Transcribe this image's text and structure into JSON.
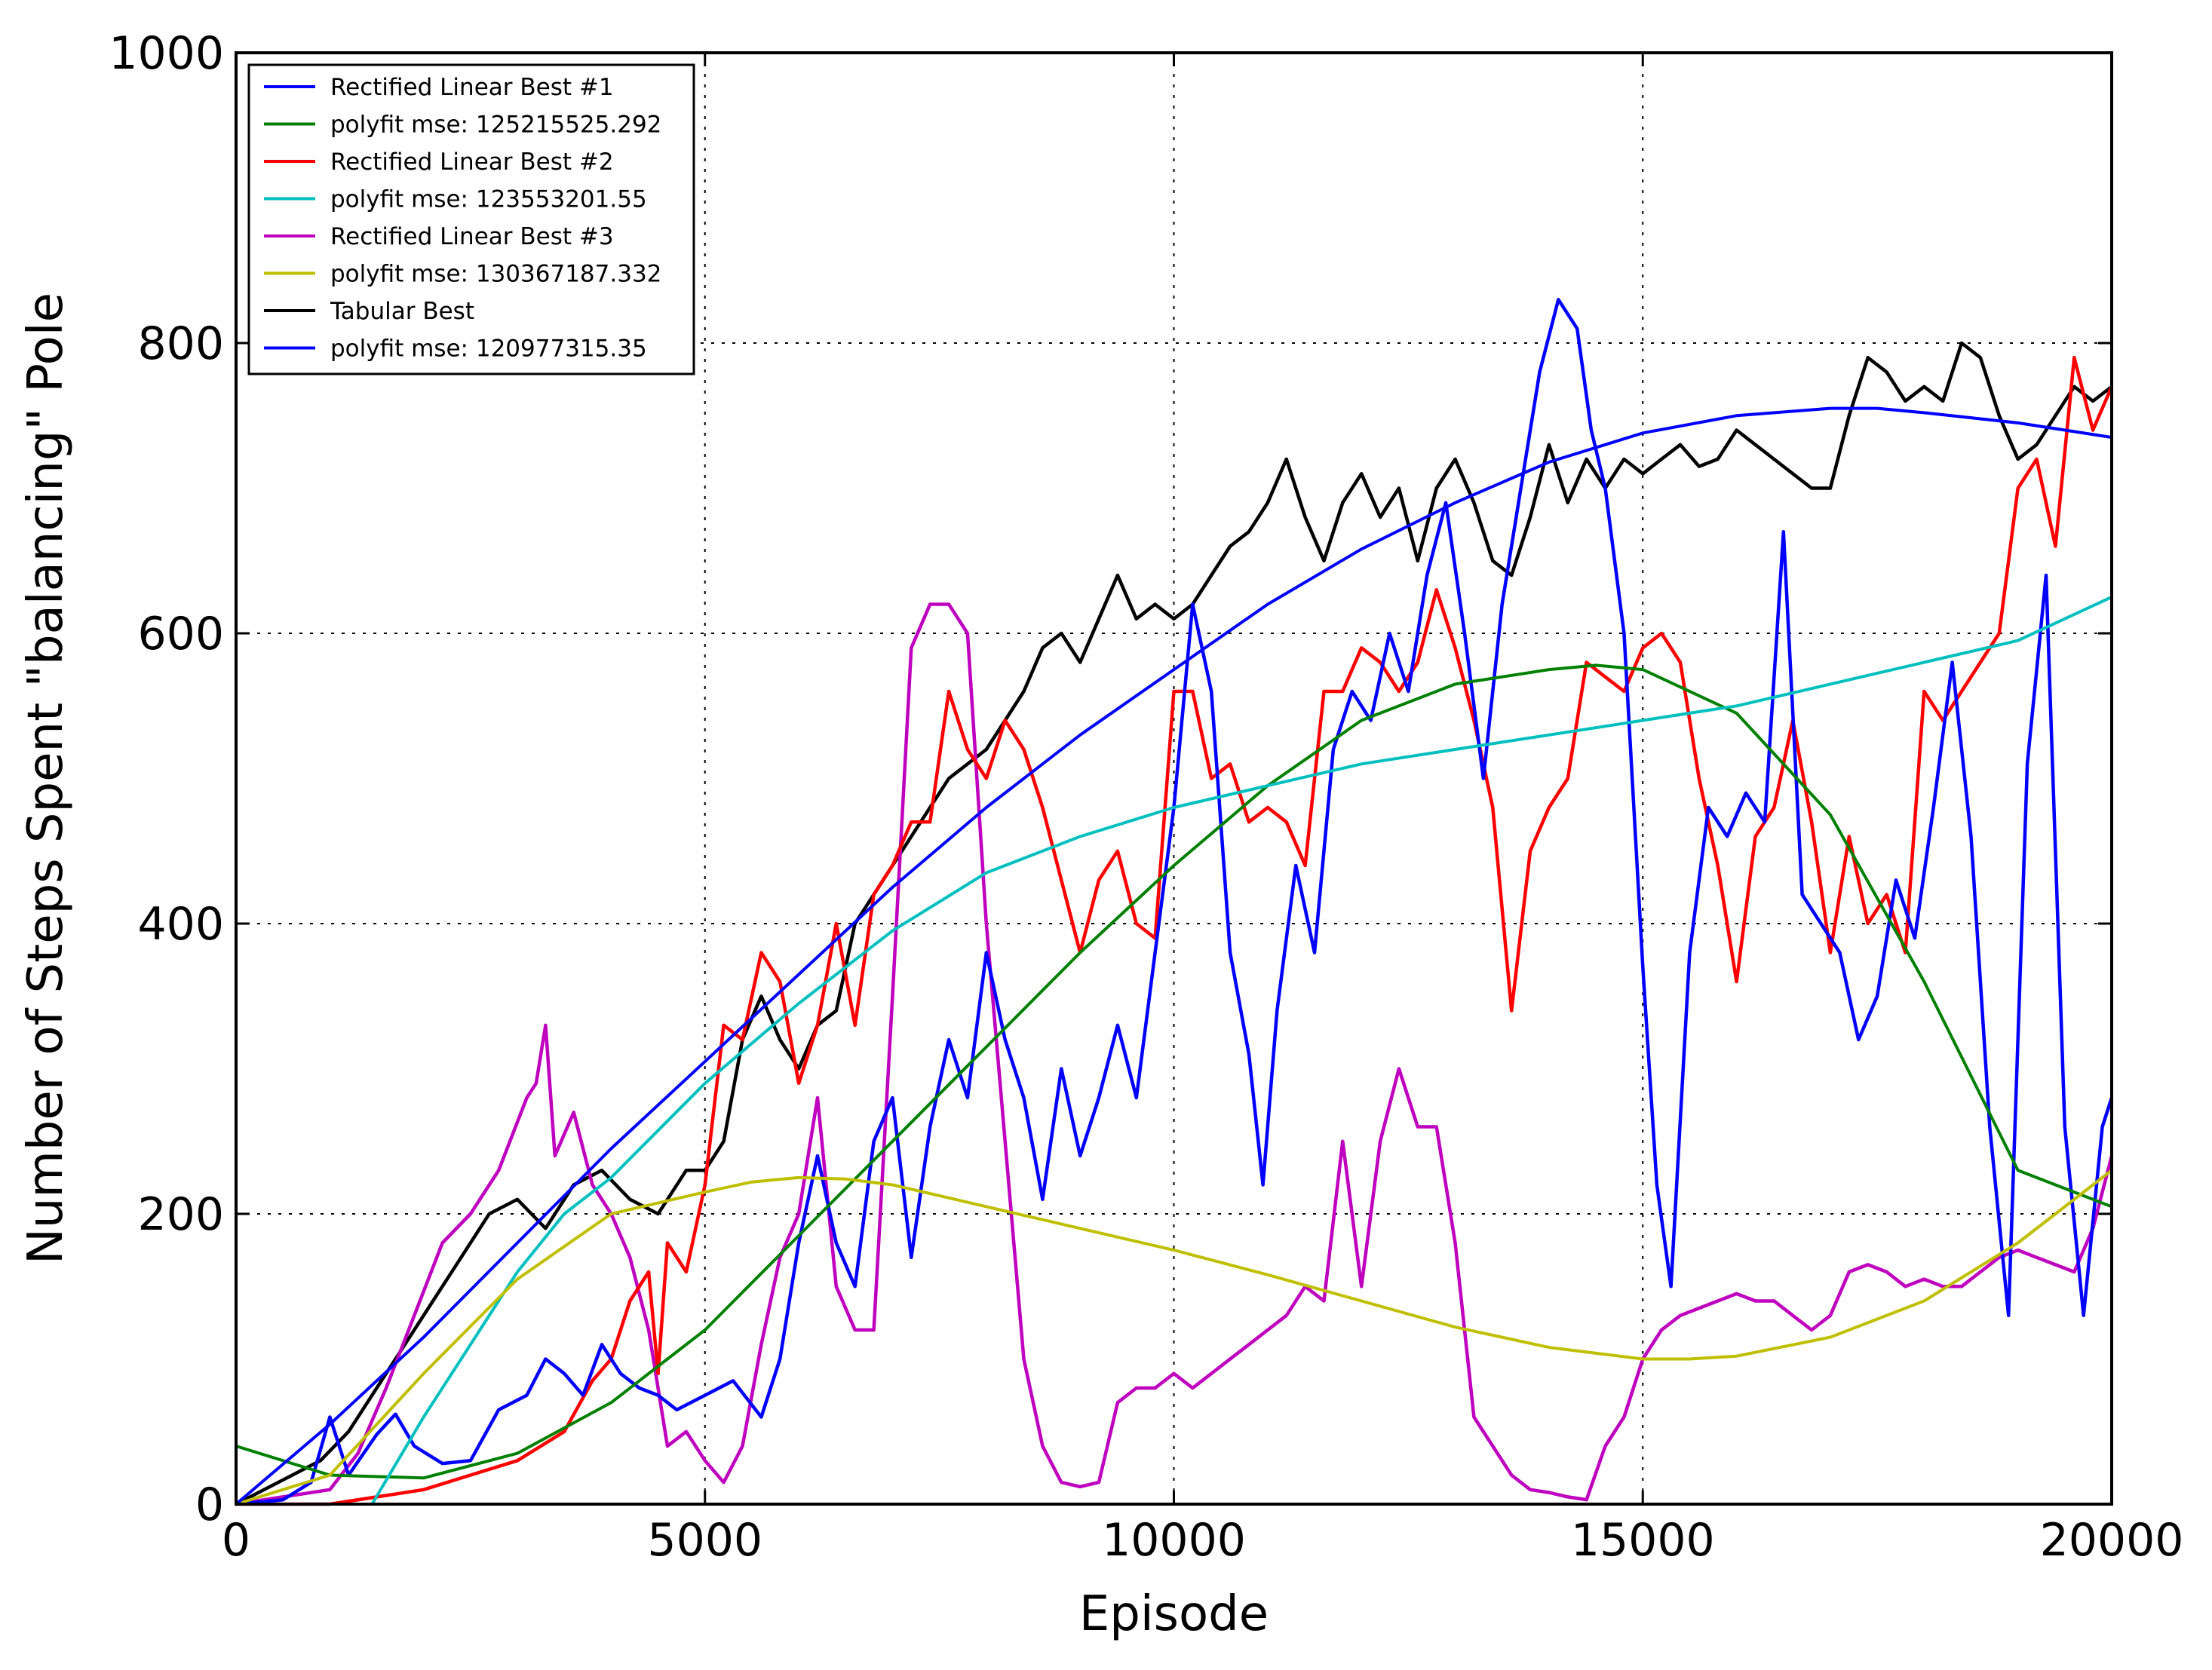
{
  "chart_data": {
    "type": "line",
    "title": "",
    "xlabel": "Episode",
    "ylabel": "Number of Steps Spent \"balancing\" Pole",
    "xlim": [
      0,
      20000
    ],
    "ylim": [
      0,
      1000
    ],
    "xticks": [
      0,
      5000,
      10000,
      15000,
      20000
    ],
    "yticks": [
      0,
      200,
      400,
      600,
      800,
      1000
    ],
    "grid": true,
    "legend_position": "top-left",
    "series": [
      {
        "name": "Rectified Linear Best #1",
        "color": "#0000ff",
        "kind": "raw",
        "x": [
          0,
          500,
          800,
          1000,
          1200,
          1500,
          1700,
          1900,
          2200,
          2500,
          2800,
          3100,
          3300,
          3500,
          3700,
          3900,
          4100,
          4300,
          4500,
          4700,
          5000,
          5300,
          5600,
          5800,
          6000,
          6200,
          6400,
          6600,
          6800,
          7000,
          7200,
          7400,
          7600,
          7800,
          8000,
          8200,
          8400,
          8600,
          8800,
          9000,
          9200,
          9400,
          9600,
          9800,
          10000,
          10200,
          10400,
          10600,
          10800,
          10950,
          11100,
          11300,
          11500,
          11700,
          11900,
          12100,
          12300,
          12500,
          12700,
          12900,
          13100,
          13300,
          13500,
          13700,
          13900,
          14100,
          14300,
          14450,
          14600,
          14800,
          15000,
          15150,
          15300,
          15500,
          15700,
          15900,
          16100,
          16300,
          16500,
          16700,
          16900,
          17100,
          17300,
          17500,
          17700,
          17900,
          18100,
          18300,
          18500,
          18700,
          18900,
          19100,
          19300,
          19500,
          19700,
          19900,
          20000
        ],
        "y": [
          0,
          3,
          15,
          60,
          20,
          48,
          62,
          40,
          28,
          30,
          65,
          75,
          100,
          90,
          75,
          110,
          90,
          80,
          75,
          65,
          75,
          85,
          60,
          100,
          180,
          240,
          180,
          150,
          250,
          280,
          170,
          260,
          320,
          280,
          380,
          320,
          280,
          210,
          300,
          240,
          280,
          330,
          280,
          380,
          480,
          620,
          560,
          380,
          310,
          220,
          340,
          440,
          380,
          520,
          560,
          540,
          600,
          560,
          640,
          690,
          600,
          500,
          620,
          700,
          780,
          830,
          810,
          740,
          700,
          600,
          370,
          220,
          150,
          380,
          480,
          460,
          490,
          470,
          670,
          420,
          400,
          380,
          320,
          350,
          430,
          390,
          480,
          580,
          460,
          260,
          130,
          510,
          640,
          260,
          130,
          260,
          280
        ]
      },
      {
        "name": "polyfit mse: 125215525.292",
        "color": "#008000",
        "kind": "fit",
        "x": [
          0,
          1000,
          2000,
          3000,
          4000,
          5000,
          6000,
          7000,
          8000,
          9000,
          10000,
          11000,
          12000,
          13000,
          14000,
          14500,
          15000,
          16000,
          17000,
          18000,
          19000,
          20000
        ],
        "y": [
          40,
          20,
          18,
          35,
          70,
          120,
          185,
          250,
          315,
          380,
          440,
          495,
          540,
          565,
          575,
          578,
          575,
          545,
          475,
          360,
          230,
          205
        ]
      },
      {
        "name": "Rectified Linear Best #2",
        "color": "#ff0000",
        "kind": "raw",
        "x": [
          0,
          1000,
          2000,
          2500,
          3000,
          3500,
          3800,
          4000,
          4200,
          4400,
          4500,
          4600,
          4800,
          5000,
          5200,
          5400,
          5600,
          5800,
          6000,
          6200,
          6400,
          6600,
          6800,
          7000,
          7200,
          7400,
          7600,
          7800,
          8000,
          8200,
          8400,
          8600,
          8800,
          9000,
          9200,
          9400,
          9600,
          9800,
          10000,
          10200,
          10400,
          10600,
          10800,
          11000,
          11200,
          11400,
          11600,
          11800,
          12000,
          12200,
          12400,
          12600,
          12800,
          13000,
          13200,
          13400,
          13600,
          13800,
          14000,
          14200,
          14400,
          14600,
          14800,
          15000,
          15200,
          15400,
          15600,
          15800,
          16000,
          16200,
          16400,
          16600,
          16800,
          17000,
          17200,
          17400,
          17600,
          17800,
          18000,
          18200,
          18400,
          18600,
          18800,
          19000,
          19200,
          19400,
          19600,
          19800,
          20000
        ],
        "y": [
          0,
          0,
          10,
          20,
          30,
          50,
          85,
          100,
          140,
          160,
          90,
          180,
          160,
          220,
          330,
          320,
          380,
          360,
          290,
          330,
          400,
          330,
          420,
          440,
          470,
          470,
          560,
          520,
          500,
          540,
          520,
          480,
          430,
          380,
          430,
          450,
          400,
          390,
          560,
          560,
          500,
          510,
          470,
          480,
          470,
          440,
          560,
          560,
          590,
          580,
          560,
          580,
          630,
          590,
          540,
          480,
          340,
          450,
          480,
          500,
          580,
          570,
          560,
          590,
          600,
          580,
          500,
          440,
          360,
          460,
          480,
          540,
          470,
          380,
          460,
          400,
          420,
          380,
          560,
          540,
          560,
          580,
          600,
          700,
          720,
          660,
          790,
          740,
          770
        ]
      },
      {
        "name": "polyfit mse: 123553201.55",
        "color": "#00bfbf",
        "kind": "fit",
        "x": [
          1450,
          2000,
          2500,
          3000,
          3500,
          4000,
          5000,
          6000,
          7000,
          8000,
          9000,
          10000,
          11000,
          12000,
          13000,
          14000,
          15000,
          16000,
          17000,
          18000,
          19000,
          20000
        ],
        "y": [
          0,
          60,
          110,
          160,
          200,
          225,
          290,
          345,
          395,
          435,
          460,
          480,
          495,
          510,
          520,
          530,
          540,
          550,
          565,
          580,
          595,
          625
        ]
      },
      {
        "name": "Rectified Linear Best #3",
        "color": "#bf00bf",
        "kind": "raw",
        "x": [
          0,
          500,
          1000,
          1300,
          1600,
          1900,
          2200,
          2500,
          2800,
          3100,
          3200,
          3300,
          3400,
          3600,
          3800,
          4000,
          4200,
          4400,
          4600,
          4800,
          5000,
          5200,
          5400,
          5600,
          5800,
          6000,
          6200,
          6400,
          6600,
          6800,
          7000,
          7200,
          7400,
          7600,
          7800,
          8000,
          8200,
          8400,
          8600,
          8800,
          9000,
          9200,
          9400,
          9600,
          9800,
          10000,
          10200,
          10400,
          10600,
          10800,
          11000,
          11200,
          11400,
          11600,
          11800,
          12000,
          12200,
          12400,
          12600,
          12800,
          13000,
          13200,
          13400,
          13600,
          13800,
          14000,
          14200,
          14400,
          14600,
          14800,
          15000,
          15200,
          15400,
          15600,
          15800,
          16000,
          16200,
          16400,
          16600,
          16800,
          17000,
          17200,
          17400,
          17600,
          17800,
          18000,
          18200,
          18400,
          18600,
          18800,
          19000,
          19200,
          19400,
          19600,
          19800,
          20000
        ],
        "y": [
          0,
          5,
          10,
          35,
          80,
          130,
          180,
          200,
          230,
          280,
          290,
          330,
          240,
          270,
          220,
          200,
          170,
          120,
          40,
          50,
          30,
          15,
          40,
          110,
          170,
          200,
          280,
          150,
          120,
          120,
          350,
          590,
          620,
          620,
          600,
          400,
          250,
          100,
          40,
          15,
          12,
          15,
          70,
          80,
          80,
          90,
          80,
          90,
          100,
          110,
          120,
          130,
          150,
          140,
          250,
          150,
          250,
          300,
          260,
          260,
          180,
          60,
          40,
          20,
          10,
          8,
          5,
          3,
          40,
          60,
          100,
          120,
          130,
          135,
          140,
          145,
          140,
          140,
          130,
          120,
          130,
          160,
          165,
          160,
          150,
          155,
          150,
          150,
          160,
          170,
          175,
          170,
          165,
          160,
          190,
          240
        ]
      },
      {
        "name": "polyfit mse: 130367187.332",
        "color": "#bfbf00",
        "kind": "fit",
        "x": [
          0,
          1000,
          2000,
          3000,
          4000,
          5000,
          5500,
          6000,
          6500,
          7000,
          8000,
          9000,
          10000,
          11000,
          12000,
          13000,
          14000,
          15000,
          15500,
          16000,
          17000,
          18000,
          19000,
          20000
        ],
        "y": [
          0,
          20,
          90,
          155,
          200,
          215,
          222,
          225,
          224,
          220,
          205,
          190,
          175,
          158,
          140,
          122,
          108,
          100,
          100,
          102,
          115,
          140,
          180,
          230
        ]
      },
      {
        "name": "Tabular Best",
        "color": "#000000",
        "kind": "raw",
        "x": [
          0,
          300,
          600,
          900,
          1200,
          1500,
          1800,
          2100,
          2400,
          2700,
          3000,
          3300,
          3600,
          3900,
          4200,
          4500,
          4800,
          5000,
          5200,
          5400,
          5600,
          5800,
          6000,
          6200,
          6400,
          6600,
          6800,
          7000,
          7200,
          7400,
          7600,
          7800,
          8000,
          8200,
          8400,
          8600,
          8800,
          9000,
          9200,
          9400,
          9600,
          9800,
          10000,
          10200,
          10400,
          10600,
          10800,
          11000,
          11200,
          11400,
          11600,
          11800,
          12000,
          12200,
          12400,
          12600,
          12800,
          13000,
          13200,
          13400,
          13600,
          13800,
          14000,
          14200,
          14400,
          14600,
          14800,
          15000,
          15200,
          15400,
          15600,
          15800,
          16000,
          16200,
          16400,
          16600,
          16800,
          17000,
          17200,
          17400,
          17600,
          17800,
          18000,
          18200,
          18400,
          18600,
          18800,
          19000,
          19200,
          19400,
          19600,
          19800,
          20000
        ],
        "y": [
          0,
          10,
          20,
          30,
          50,
          80,
          110,
          140,
          170,
          200,
          210,
          190,
          220,
          230,
          210,
          200,
          230,
          230,
          250,
          320,
          350,
          320,
          300,
          330,
          340,
          400,
          420,
          440,
          460,
          480,
          500,
          510,
          520,
          540,
          560,
          590,
          600,
          580,
          610,
          640,
          610,
          620,
          610,
          620,
          640,
          660,
          670,
          690,
          720,
          680,
          650,
          690,
          710,
          680,
          700,
          650,
          700,
          720,
          690,
          650,
          640,
          680,
          730,
          690,
          720,
          700,
          720,
          710,
          720,
          730,
          715,
          720,
          740,
          730,
          720,
          710,
          700,
          700,
          750,
          790,
          780,
          760,
          770,
          760,
          800,
          790,
          750,
          720,
          730,
          750,
          770,
          760,
          770
        ]
      },
      {
        "name": "polyfit mse: 120977315.35",
        "color": "#0000ff",
        "kind": "fit",
        "x": [
          0,
          1000,
          2000,
          3000,
          4000,
          5000,
          6000,
          7000,
          8000,
          9000,
          10000,
          11000,
          12000,
          13000,
          14000,
          15000,
          16000,
          17000,
          17500,
          18000,
          19000,
          20000
        ],
        "y": [
          0,
          55,
          115,
          180,
          245,
          305,
          365,
          425,
          480,
          530,
          575,
          620,
          658,
          690,
          718,
          738,
          750,
          755,
          755,
          752,
          745,
          735
        ]
      }
    ]
  }
}
